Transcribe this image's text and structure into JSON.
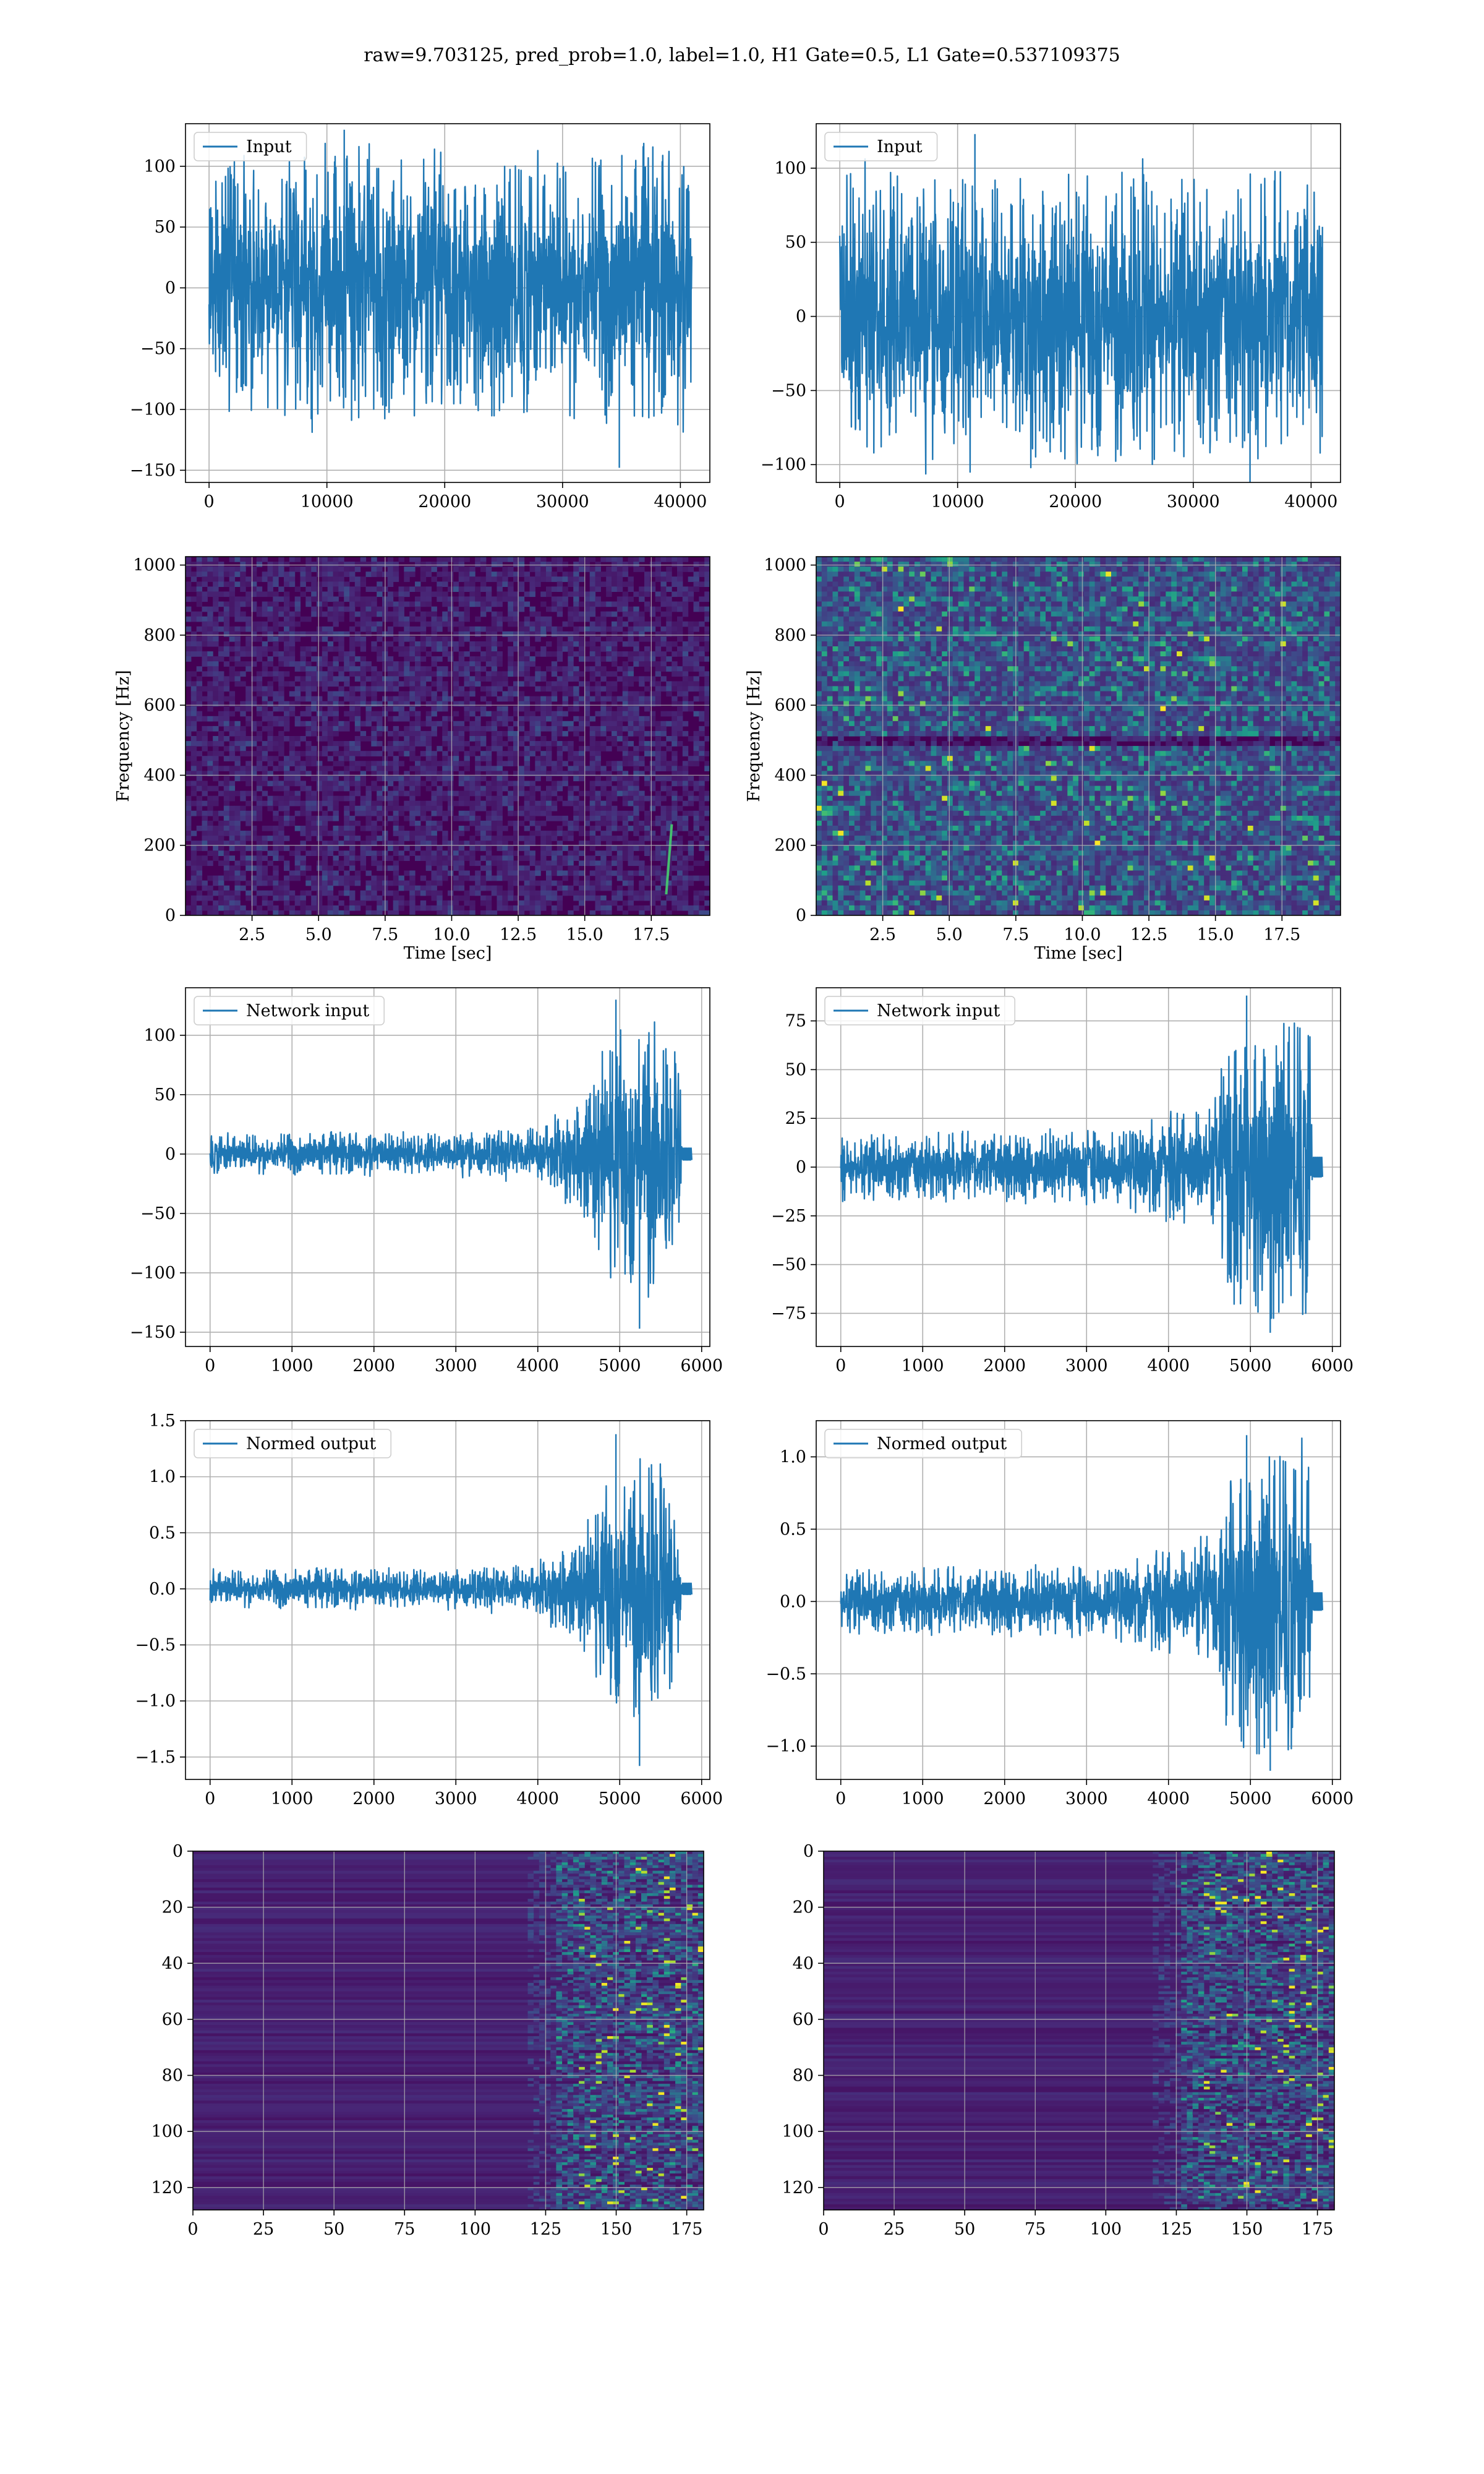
{
  "suptitle": "raw=9.703125, pred_prob=1.0, label=1.0, H1 Gate=0.5, L1 Gate=0.537109375",
  "colors": {
    "line": "#1f77b4",
    "grid": "#b0b0b0",
    "viridis_low": "#440154",
    "viridis_mid": "#21918c",
    "viridis_high": "#fde725"
  },
  "chart_data": [
    {
      "type": "line",
      "row": 0,
      "col": 0,
      "legend": "Input",
      "legend_loc": "upper-left",
      "grid": true,
      "xlim": [
        -2000,
        42500
      ],
      "ylim": [
        -160,
        135
      ],
      "xticks": [
        0,
        10000,
        20000,
        30000,
        40000
      ],
      "yticks": [
        -150,
        -100,
        -50,
        0,
        50,
        100
      ],
      "signal": {
        "n": 40960,
        "envelope": [
          [
            0,
            95
          ],
          [
            0.5,
            95
          ],
          [
            1,
            95
          ]
        ],
        "extremes": [
          130,
          -148
        ]
      }
    },
    {
      "type": "line",
      "row": 0,
      "col": 1,
      "legend": "Input",
      "legend_loc": "upper-left",
      "grid": true,
      "xlim": [
        -2000,
        42500
      ],
      "ylim": [
        -112,
        130
      ],
      "xticks": [
        0,
        10000,
        20000,
        30000,
        40000
      ],
      "yticks": [
        -100,
        -50,
        0,
        50,
        100
      ],
      "signal": {
        "n": 40960,
        "envelope": [
          [
            0,
            85
          ],
          [
            0.5,
            85
          ],
          [
            1,
            85
          ]
        ],
        "extremes": [
          123,
          -112
        ]
      }
    },
    {
      "type": "heatmap",
      "row": 1,
      "col": 0,
      "kind": "spectrogram",
      "xlabel": "Time [sec]",
      "ylabel": "Frequency [Hz]",
      "grid": true,
      "xlim": [
        0,
        19.7
      ],
      "ylim": [
        0,
        1024
      ],
      "xticks": [
        2.5,
        5.0,
        7.5,
        10.0,
        12.5,
        15.0,
        17.5
      ],
      "yticks": [
        0,
        200,
        400,
        600,
        800,
        1000
      ],
      "texture": "dim",
      "chirp_time": 18.2
    },
    {
      "type": "heatmap",
      "row": 1,
      "col": 1,
      "kind": "spectrogram",
      "xlabel": "Time [sec]",
      "ylabel": "Frequency [Hz]",
      "grid": true,
      "xlim": [
        0,
        19.7
      ],
      "ylim": [
        0,
        1024
      ],
      "xticks": [
        2.5,
        5.0,
        7.5,
        10.0,
        12.5,
        15.0,
        17.5
      ],
      "yticks": [
        0,
        200,
        400,
        600,
        800,
        1000
      ],
      "texture": "bright",
      "chirp_time": null
    },
    {
      "type": "line",
      "row": 2,
      "col": 0,
      "legend": "Network input",
      "legend_loc": "upper-left",
      "grid": true,
      "xlim": [
        -300,
        6100
      ],
      "ylim": [
        -162,
        140
      ],
      "xticks": [
        0,
        1000,
        2000,
        3000,
        4000,
        5000,
        6000
      ],
      "yticks": [
        -150,
        -100,
        -50,
        0,
        50,
        100
      ],
      "signal": {
        "n": 5760,
        "envelope": [
          [
            0,
            15
          ],
          [
            0.5,
            15
          ],
          [
            0.68,
            20
          ],
          [
            0.78,
            40
          ],
          [
            0.85,
            90
          ],
          [
            0.93,
            105
          ],
          [
            0.998,
            60
          ],
          [
            1,
            5
          ]
        ],
        "extremes": [
          130,
          -147
        ],
        "tail": 120
      }
    },
    {
      "type": "line",
      "row": 2,
      "col": 1,
      "legend": "Network input",
      "legend_loc": "upper-left",
      "grid": true,
      "xlim": [
        -300,
        6100
      ],
      "ylim": [
        -92,
        92
      ],
      "xticks": [
        0,
        1000,
        2000,
        3000,
        4000,
        5000,
        6000
      ],
      "yticks": [
        -75,
        -50,
        -25,
        0,
        25,
        50,
        75
      ],
      "signal": {
        "n": 5760,
        "envelope": [
          [
            0,
            15
          ],
          [
            0.55,
            17
          ],
          [
            0.7,
            25
          ],
          [
            0.8,
            30
          ],
          [
            0.82,
            70
          ],
          [
            0.998,
            70
          ],
          [
            1,
            5
          ]
        ],
        "extremes": [
          88,
          -85
        ],
        "tail": 120
      }
    },
    {
      "type": "line",
      "row": 3,
      "col": 0,
      "legend": "Normed output",
      "legend_loc": "upper-left",
      "grid": true,
      "xlim": [
        -300,
        6100
      ],
      "ylim": [
        -1.7,
        1.5
      ],
      "xticks": [
        0,
        1000,
        2000,
        3000,
        4000,
        5000,
        6000
      ],
      "yticks": [
        -1.5,
        -1.0,
        -0.5,
        0.0,
        0.5,
        1.0,
        1.5
      ],
      "signal": {
        "n": 5760,
        "envelope": [
          [
            0,
            0.15
          ],
          [
            0.5,
            0.15
          ],
          [
            0.68,
            0.2
          ],
          [
            0.78,
            0.4
          ],
          [
            0.85,
            0.9
          ],
          [
            0.93,
            1.05
          ],
          [
            0.998,
            0.6
          ],
          [
            1,
            0.05
          ]
        ],
        "extremes": [
          1.38,
          -1.58
        ],
        "tail": 120
      }
    },
    {
      "type": "line",
      "row": 3,
      "col": 1,
      "legend": "Normed output",
      "legend_loc": "upper-left",
      "grid": true,
      "xlim": [
        -300,
        6100
      ],
      "ylim": [
        -1.23,
        1.25
      ],
      "xticks": [
        0,
        1000,
        2000,
        3000,
        4000,
        5000,
        6000
      ],
      "yticks": [
        -1.0,
        -0.5,
        0.0,
        0.5,
        1.0
      ],
      "signal": {
        "n": 5760,
        "envelope": [
          [
            0,
            0.2
          ],
          [
            0.55,
            0.22
          ],
          [
            0.7,
            0.33
          ],
          [
            0.8,
            0.4
          ],
          [
            0.82,
            0.95
          ],
          [
            0.998,
            0.95
          ],
          [
            1,
            0.06
          ]
        ],
        "extremes": [
          1.15,
          -1.17
        ],
        "tail": 120
      }
    },
    {
      "type": "heatmap",
      "row": 4,
      "col": 0,
      "kind": "feature-map",
      "grid": true,
      "origin": "upper",
      "xlim": [
        0,
        181
      ],
      "ylim": [
        128,
        0
      ],
      "xticks": [
        0,
        25,
        50,
        75,
        100,
        125,
        150,
        175
      ],
      "yticks": [
        0,
        20,
        40,
        60,
        80,
        100,
        120
      ],
      "rows": 128,
      "cols": 181,
      "active_from": 128
    },
    {
      "type": "heatmap",
      "row": 4,
      "col": 1,
      "kind": "feature-map",
      "grid": true,
      "origin": "upper",
      "xlim": [
        0,
        181
      ],
      "ylim": [
        128,
        0
      ],
      "xticks": [
        0,
        25,
        50,
        75,
        100,
        125,
        150,
        175
      ],
      "yticks": [
        0,
        20,
        40,
        60,
        80,
        100,
        120
      ],
      "rows": 128,
      "cols": 181,
      "active_from": 125
    }
  ]
}
